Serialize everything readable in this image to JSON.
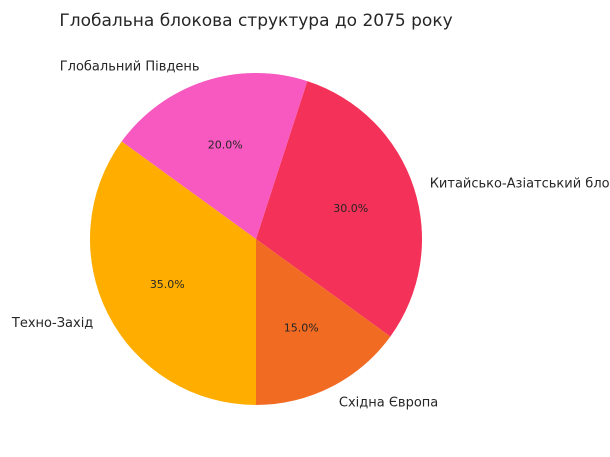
{
  "chart_data": {
    "type": "pie",
    "title": "Глобальна блокова структура до 2075 року",
    "slices": [
      {
        "label": "Китайсько-Азіатський блок",
        "value": 30.0,
        "pct_label": "30.0%",
        "color": "#f43158"
      },
      {
        "label": "Східна Європа",
        "value": 15.0,
        "pct_label": "15.0%",
        "color": "#f26b22"
      },
      {
        "label": "Техно-Захід",
        "value": 35.0,
        "pct_label": "35.0%",
        "color": "#ffae00"
      },
      {
        "label": "Глобальний Південь",
        "value": 20.0,
        "pct_label": "20.0%",
        "color": "#f759c0"
      }
    ],
    "start_angle_deg": 72,
    "direction": "clockwise",
    "legend": "none"
  }
}
